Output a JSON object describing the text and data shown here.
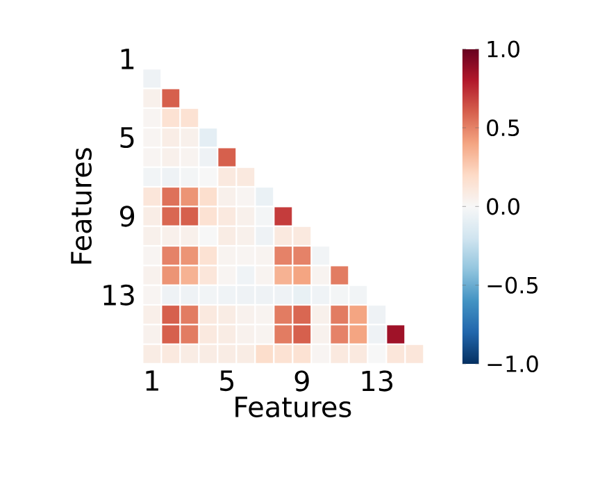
{
  "chart_data": {
    "type": "heatmap",
    "xlabel": "Features",
    "ylabel": "Features",
    "categories": [
      "1",
      null,
      null,
      null,
      "5",
      null,
      null,
      null,
      "9",
      null,
      null,
      null,
      "13",
      null,
      null,
      null
    ],
    "y_categories": [
      "1",
      null,
      null,
      null,
      "5",
      null,
      null,
      null,
      "9",
      null,
      null,
      null,
      "13",
      null,
      null,
      null
    ],
    "cells": [
      [
        null,
        null,
        null,
        null,
        null,
        null,
        null,
        null,
        null,
        null,
        null,
        null,
        null,
        null,
        null,
        null
      ],
      [
        -0.05,
        null,
        null,
        null,
        null,
        null,
        null,
        null,
        null,
        null,
        null,
        null,
        null,
        null,
        null,
        null
      ],
      [
        0.05,
        0.6,
        null,
        null,
        null,
        null,
        null,
        null,
        null,
        null,
        null,
        null,
        null,
        null,
        null,
        null
      ],
      [
        0.02,
        0.15,
        0.15,
        null,
        null,
        null,
        null,
        null,
        null,
        null,
        null,
        null,
        null,
        null,
        null,
        null
      ],
      [
        0.02,
        0.07,
        0.05,
        -0.1,
        null,
        null,
        null,
        null,
        null,
        null,
        null,
        null,
        null,
        null,
        null,
        null
      ],
      [
        0.02,
        0.05,
        0.03,
        -0.05,
        0.6,
        null,
        null,
        null,
        null,
        null,
        null,
        null,
        null,
        null,
        null,
        null
      ],
      [
        -0.03,
        -0.05,
        -0.02,
        0.0,
        0.1,
        0.1,
        null,
        null,
        null,
        null,
        null,
        null,
        null,
        null,
        null,
        null
      ],
      [
        0.12,
        0.55,
        0.45,
        0.17,
        0.05,
        0.02,
        -0.07,
        null,
        null,
        null,
        null,
        null,
        null,
        null,
        null,
        null
      ],
      [
        0.07,
        0.58,
        0.6,
        0.15,
        0.1,
        0.05,
        -0.02,
        0.7,
        null,
        null,
        null,
        null,
        null,
        null,
        null,
        null
      ],
      [
        0.05,
        0.05,
        0.05,
        0.0,
        0.08,
        0.05,
        -0.05,
        0.1,
        0.1,
        null,
        null,
        null,
        null,
        null,
        null,
        null
      ],
      [
        0.02,
        0.5,
        0.45,
        0.15,
        0.03,
        0.02,
        0.03,
        0.5,
        0.5,
        -0.03,
        null,
        null,
        null,
        null,
        null,
        null
      ],
      [
        0.04,
        0.45,
        0.35,
        0.12,
        0.02,
        -0.04,
        0.03,
        0.35,
        0.4,
        0.03,
        0.52,
        null,
        null,
        null,
        null,
        null
      ],
      [
        0.02,
        -0.05,
        -0.05,
        -0.03,
        -0.04,
        -0.05,
        -0.05,
        -0.05,
        -0.08,
        -0.04,
        -0.02,
        -0.03,
        null,
        null,
        null,
        null
      ],
      [
        0.06,
        0.6,
        0.52,
        0.1,
        0.08,
        0.04,
        0.03,
        0.52,
        0.58,
        0.05,
        0.52,
        0.4,
        -0.05,
        null,
        null,
        null
      ],
      [
        0.04,
        0.6,
        0.52,
        0.1,
        0.08,
        0.04,
        0.03,
        0.52,
        0.6,
        0.04,
        0.5,
        0.4,
        -0.05,
        0.85,
        null,
        null
      ],
      [
        0.08,
        0.1,
        0.08,
        0.08,
        0.08,
        0.08,
        0.18,
        0.15,
        0.15,
        0.02,
        0.1,
        0.1,
        0.0,
        0.12,
        0.12,
        null
      ]
    ],
    "clim": [
      -1,
      1
    ],
    "cticks": [
      {
        "value": -1,
        "label": "−1.0"
      },
      {
        "value": -0.5,
        "label": "−0.5"
      },
      {
        "value": 0,
        "label": "0.0"
      },
      {
        "value": 0.5,
        "label": "0.5"
      },
      {
        "value": 1,
        "label": "1.0"
      }
    ]
  }
}
